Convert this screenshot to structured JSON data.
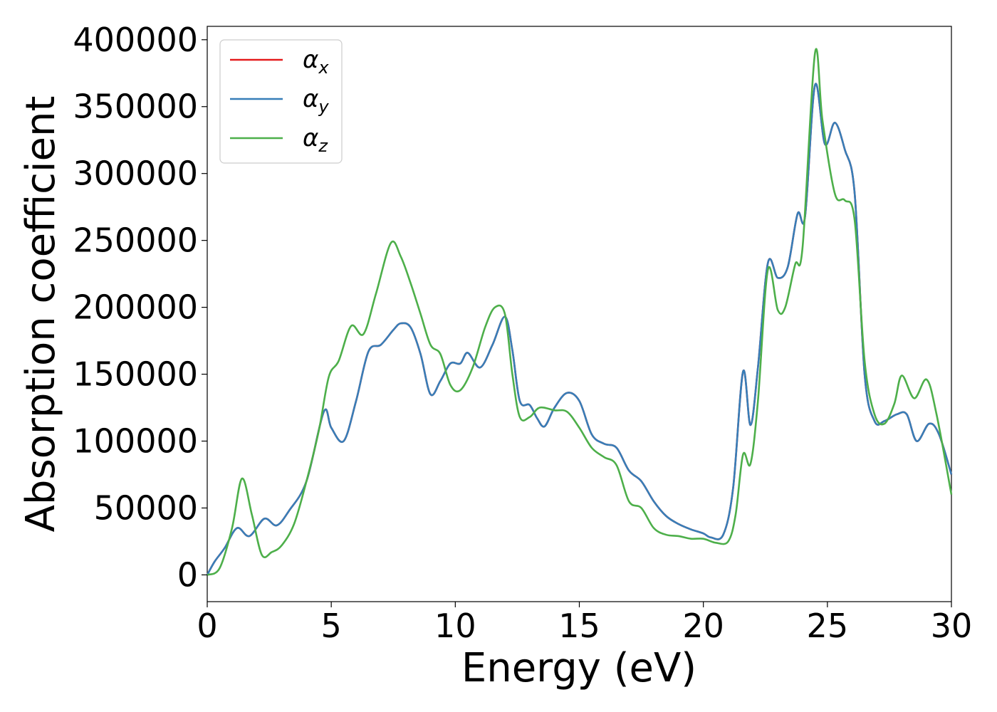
{
  "chart_data": {
    "type": "line",
    "xlabel": "Energy (eV)",
    "ylabel": "Absorption coefficient",
    "xlim": [
      0,
      30
    ],
    "ylim": [
      -20000,
      410000
    ],
    "xticks": [
      0,
      5,
      10,
      15,
      20,
      25,
      30
    ],
    "yticks": [
      0,
      50000,
      100000,
      150000,
      200000,
      250000,
      300000,
      350000,
      400000
    ],
    "grid": false,
    "legend_position": "top-left",
    "series": [
      {
        "name": "α",
        "subscript": "x",
        "color": "#e41a1c",
        "x": [
          0,
          0.3,
          0.7,
          1.2,
          1.7,
          2.3,
          2.8,
          3.3,
          4.0,
          4.7,
          5.0,
          5.5,
          6.0,
          6.5,
          7.0,
          7.5,
          7.8,
          8.2,
          8.6,
          9.0,
          9.4,
          9.8,
          10.2,
          10.5,
          11.0,
          11.5,
          12.0,
          12.3,
          12.6,
          13.0,
          13.3,
          13.6,
          14.0,
          14.5,
          15.0,
          15.5,
          16.0,
          16.5,
          17.0,
          17.5,
          18.0,
          18.5,
          19.0,
          19.5,
          20.0,
          20.3,
          20.8,
          21.2,
          21.6,
          21.9,
          22.2,
          22.6,
          23.0,
          23.4,
          23.8,
          24.1,
          24.5,
          24.9,
          25.3,
          25.7,
          26.1,
          26.5,
          26.9,
          27.3,
          27.8,
          28.2,
          28.6,
          29.1,
          29.5,
          30.0
        ],
        "values": [
          0,
          10000,
          20000,
          35000,
          29000,
          42000,
          37000,
          48000,
          70000,
          122000,
          110000,
          100000,
          130000,
          167000,
          172000,
          183000,
          188000,
          185000,
          165000,
          135000,
          145000,
          158000,
          158000,
          166000,
          155000,
          172000,
          193000,
          168000,
          130000,
          127000,
          117000,
          111000,
          125000,
          136000,
          130000,
          105000,
          98000,
          95000,
          78000,
          70000,
          55000,
          44000,
          38000,
          34000,
          31000,
          28000,
          30000,
          65000,
          152000,
          112000,
          155000,
          233000,
          222000,
          230000,
          270000,
          268000,
          366000,
          322000,
          338000,
          318000,
          285000,
          150000,
          115000,
          115000,
          120000,
          120000,
          100000,
          113000,
          105000,
          75000
        ]
      },
      {
        "name": "α",
        "subscript": "y",
        "color": "#377eb8",
        "x": [
          0,
          0.3,
          0.7,
          1.2,
          1.7,
          2.3,
          2.8,
          3.3,
          4.0,
          4.7,
          5.0,
          5.5,
          6.0,
          6.5,
          7.0,
          7.5,
          7.8,
          8.2,
          8.6,
          9.0,
          9.4,
          9.8,
          10.2,
          10.5,
          11.0,
          11.5,
          12.0,
          12.3,
          12.6,
          13.0,
          13.3,
          13.6,
          14.0,
          14.5,
          15.0,
          15.5,
          16.0,
          16.5,
          17.0,
          17.5,
          18.0,
          18.5,
          19.0,
          19.5,
          20.0,
          20.3,
          20.8,
          21.2,
          21.6,
          21.9,
          22.2,
          22.6,
          23.0,
          23.4,
          23.8,
          24.1,
          24.5,
          24.9,
          25.3,
          25.7,
          26.1,
          26.5,
          26.9,
          27.3,
          27.8,
          28.2,
          28.6,
          29.1,
          29.5,
          30.0
        ],
        "values": [
          0,
          10000,
          20000,
          35000,
          29000,
          42000,
          37000,
          48000,
          70000,
          122000,
          110000,
          100000,
          130000,
          167000,
          172000,
          183000,
          188000,
          185000,
          165000,
          135000,
          145000,
          158000,
          158000,
          166000,
          155000,
          172000,
          193000,
          168000,
          130000,
          127000,
          117000,
          111000,
          125000,
          136000,
          130000,
          105000,
          98000,
          95000,
          78000,
          70000,
          55000,
          44000,
          38000,
          34000,
          31000,
          28000,
          30000,
          65000,
          152000,
          112000,
          155000,
          233000,
          222000,
          230000,
          270000,
          268000,
          366000,
          322000,
          338000,
          318000,
          285000,
          150000,
          115000,
          115000,
          120000,
          120000,
          100000,
          113000,
          105000,
          75000
        ]
      },
      {
        "name": "α",
        "subscript": "z",
        "color": "#4daf4a",
        "x": [
          0,
          0.5,
          1.0,
          1.4,
          1.8,
          2.2,
          2.6,
          3.0,
          3.5,
          4.0,
          4.5,
          4.9,
          5.3,
          5.8,
          6.3,
          6.8,
          7.4,
          7.8,
          8.2,
          8.6,
          9.0,
          9.4,
          9.8,
          10.2,
          10.7,
          11.2,
          11.6,
          12.0,
          12.3,
          12.6,
          13.0,
          13.4,
          14.0,
          14.5,
          15.0,
          15.5,
          16.0,
          16.5,
          17.0,
          17.5,
          18.0,
          18.5,
          19.0,
          19.5,
          20.0,
          20.5,
          21.0,
          21.3,
          21.6,
          21.9,
          22.2,
          22.6,
          23.0,
          23.3,
          23.7,
          24.0,
          24.5,
          24.8,
          25.3,
          25.7,
          26.1,
          26.5,
          26.9,
          27.3,
          27.7,
          28.0,
          28.5,
          29.0,
          29.4,
          30.0
        ],
        "values": [
          0,
          5000,
          35000,
          72000,
          45000,
          15000,
          17000,
          22000,
          38000,
          70000,
          108000,
          148000,
          160000,
          186000,
          180000,
          210000,
          248000,
          238000,
          218000,
          195000,
          172000,
          165000,
          142000,
          138000,
          155000,
          185000,
          200000,
          195000,
          150000,
          118000,
          118000,
          125000,
          123000,
          122000,
          110000,
          95000,
          88000,
          82000,
          55000,
          50000,
          35000,
          30000,
          29000,
          27000,
          27000,
          24000,
          25000,
          45000,
          90000,
          83000,
          130000,
          228000,
          198000,
          200000,
          232000,
          245000,
          390000,
          340000,
          285000,
          280000,
          265000,
          160000,
          120000,
          113000,
          128000,
          149000,
          132000,
          146000,
          120000,
          60000
        ]
      }
    ]
  }
}
